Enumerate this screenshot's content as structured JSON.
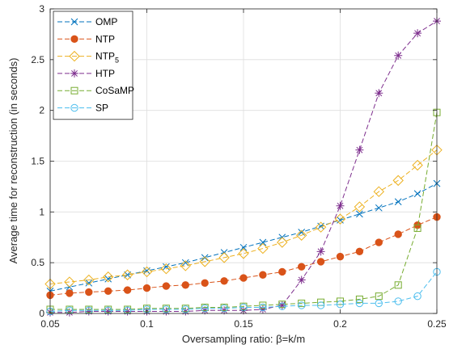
{
  "chart_data": {
    "type": "line",
    "title": "",
    "xlabel": "Oversampling ratio: β=k/m",
    "ylabel": "Average time for reconstruction (in seconds)",
    "xlim": [
      0.05,
      0.25
    ],
    "ylim": [
      0,
      3
    ],
    "xticks": [
      0.05,
      0.1,
      0.15,
      0.2,
      0.25
    ],
    "xtick_labels": [
      "0.05",
      "0.1",
      "0.15",
      "0.2",
      "0.25"
    ],
    "yticks": [
      0,
      0.5,
      1,
      1.5,
      2,
      2.5,
      3
    ],
    "ytick_labels": [
      "0",
      "0.5",
      "1",
      "1.5",
      "2",
      "2.5",
      "3"
    ],
    "grid": true,
    "legend_position": "top-left",
    "x": [
      0.05,
      0.06,
      0.07,
      0.08,
      0.09,
      0.1,
      0.11,
      0.12,
      0.13,
      0.14,
      0.15,
      0.16,
      0.17,
      0.18,
      0.19,
      0.2,
      0.21,
      0.22,
      0.23,
      0.24,
      0.25
    ],
    "series": [
      {
        "name": "OMP",
        "color": "#0072BD",
        "marker": "x",
        "values": [
          0.22,
          0.26,
          0.3,
          0.34,
          0.38,
          0.42,
          0.46,
          0.5,
          0.55,
          0.6,
          0.65,
          0.7,
          0.75,
          0.8,
          0.86,
          0.92,
          0.98,
          1.04,
          1.1,
          1.18,
          1.28
        ]
      },
      {
        "name": "NTP",
        "color": "#D95319",
        "marker": "filled-circle",
        "values": [
          0.18,
          0.2,
          0.21,
          0.22,
          0.23,
          0.25,
          0.27,
          0.28,
          0.3,
          0.32,
          0.35,
          0.38,
          0.41,
          0.46,
          0.51,
          0.56,
          0.61,
          0.7,
          0.78,
          0.87,
          0.95
        ]
      },
      {
        "name": "NTP",
        "name_subscript": "5",
        "color": "#EDB120",
        "marker": "diamond",
        "values": [
          0.29,
          0.31,
          0.33,
          0.36,
          0.38,
          0.41,
          0.44,
          0.47,
          0.51,
          0.55,
          0.59,
          0.64,
          0.7,
          0.77,
          0.85,
          0.93,
          1.05,
          1.2,
          1.31,
          1.46,
          1.61
        ]
      },
      {
        "name": "HTP",
        "color": "#7E2F8E",
        "marker": "asterisk",
        "values": [
          0.01,
          0.01,
          0.02,
          0.02,
          0.02,
          0.02,
          0.02,
          0.02,
          0.03,
          0.03,
          0.03,
          0.04,
          0.08,
          0.33,
          0.61,
          1.06,
          1.61,
          2.17,
          2.54,
          2.76,
          2.88
        ]
      },
      {
        "name": "CoSaMP",
        "color": "#77AC30",
        "marker": "square",
        "values": [
          0.04,
          0.04,
          0.04,
          0.04,
          0.04,
          0.05,
          0.05,
          0.05,
          0.06,
          0.06,
          0.07,
          0.08,
          0.09,
          0.1,
          0.11,
          0.12,
          0.14,
          0.17,
          0.28,
          0.84,
          1.98
        ]
      },
      {
        "name": "SP",
        "color": "#4DBEEE",
        "marker": "circle",
        "values": [
          0.02,
          0.03,
          0.03,
          0.03,
          0.03,
          0.04,
          0.04,
          0.04,
          0.05,
          0.05,
          0.06,
          0.06,
          0.07,
          0.08,
          0.08,
          0.09,
          0.1,
          0.1,
          0.12,
          0.17,
          0.41
        ]
      }
    ]
  }
}
